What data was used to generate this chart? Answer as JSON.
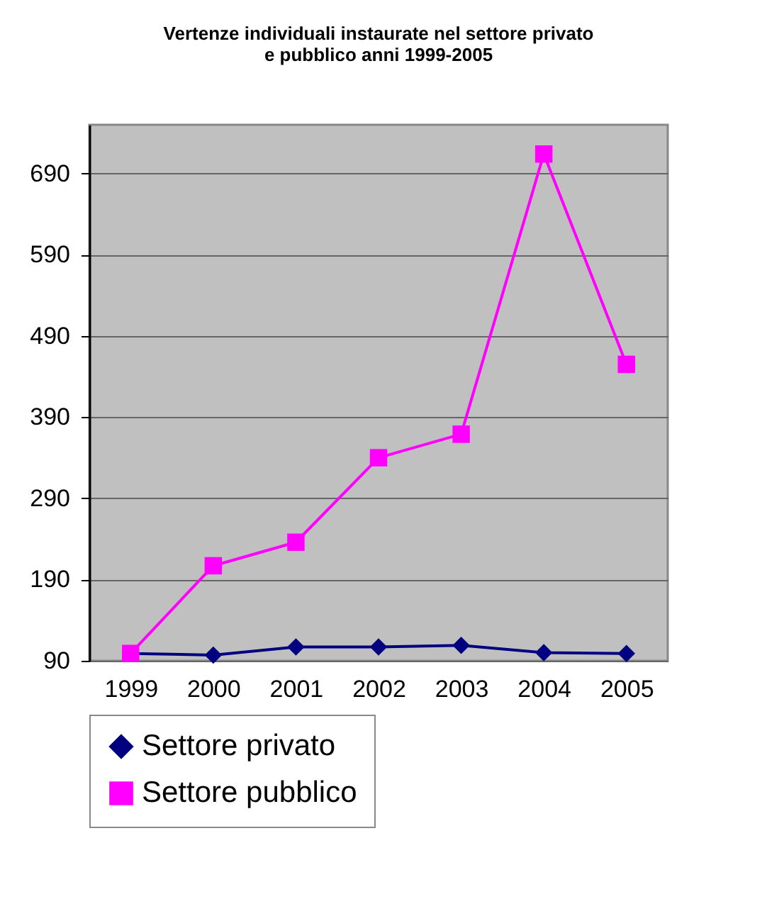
{
  "chart_data": {
    "type": "line",
    "title": "Vertenze individuali instaurate nel settore privato\ne pubblico anni 1999-2005",
    "categories": [
      "1999",
      "2000",
      "2001",
      "2002",
      "2003",
      "2004",
      "2005"
    ],
    "series": [
      {
        "name": "Settore privato",
        "color": "#000080",
        "marker": "diamond",
        "values": [
          99,
          97,
          107,
          107,
          109,
          100,
          99
        ]
      },
      {
        "name": "Settore pubblico",
        "color": "#ff00ff",
        "marker": "square",
        "values": [
          99,
          207,
          236,
          340,
          369,
          714,
          455
        ]
      }
    ],
    "ylim": [
      90,
      750
    ],
    "yticks": [
      90,
      190,
      290,
      390,
      490,
      590,
      690
    ],
    "grid": "y",
    "legend": "bottom"
  }
}
